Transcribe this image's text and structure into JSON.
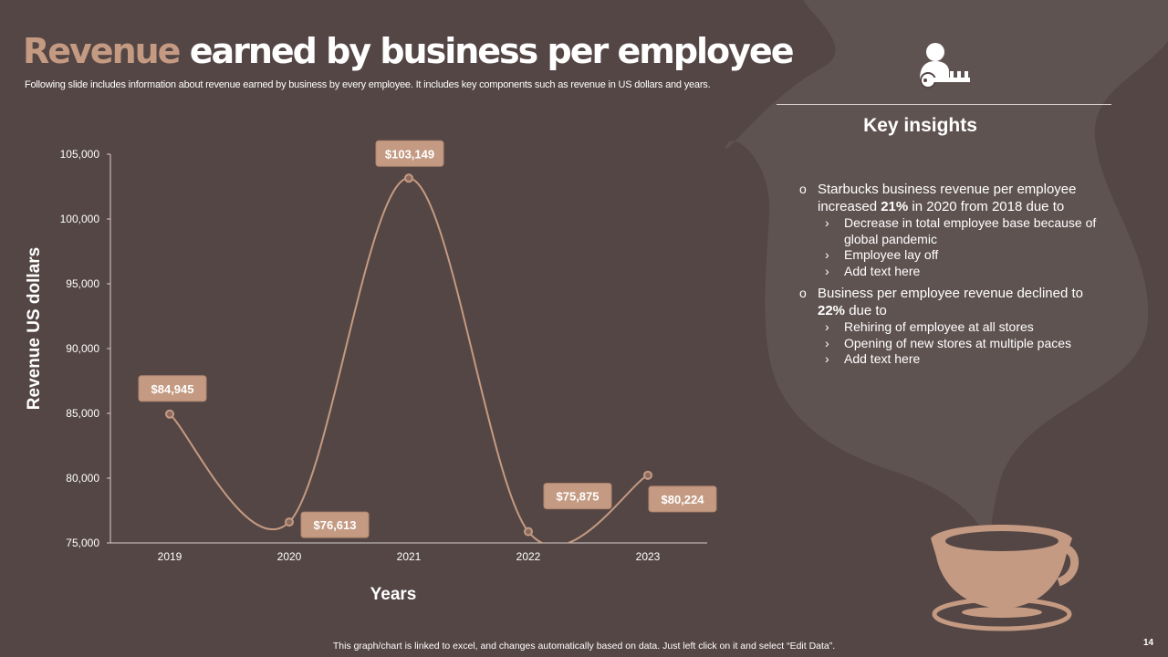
{
  "title": {
    "accent": "Revenue",
    "rest": "earned by business per employee"
  },
  "subtitle": "Following slide includes information about revenue earned by business by every  employee. It includes key components such as revenue in US dollars and years.",
  "colors": {
    "background": "#544645",
    "steam": "#5f5351",
    "accent": "#c49a82",
    "line": "#c49a82",
    "label_box": "#c49a82"
  },
  "chart_data": {
    "type": "line",
    "smooth": true,
    "x": [
      "2019",
      "2020",
      "2021",
      "2022",
      "2023"
    ],
    "series": [
      {
        "values": [
          84945,
          76613,
          103149,
          75875,
          80224
        ]
      }
    ],
    "data_labels": [
      "$84,945",
      "$76,613",
      "$103,149",
      "$75,875",
      "$80,224"
    ],
    "xlabel": "Years",
    "ylabel": "Revenue US dollars",
    "ylim": [
      75000,
      105000
    ],
    "yticks": [
      75000,
      80000,
      85000,
      90000,
      95000,
      100000,
      105000
    ],
    "ytick_labels": [
      "75,000",
      "80,000",
      "85,000",
      "90,000",
      "95,000",
      "100,000",
      "105,000"
    ],
    "grid": false,
    "legend": false
  },
  "panel": {
    "icon": "user-key-icon",
    "heading": "Key insights",
    "insights": [
      {
        "pre": "Starbucks business revenue per employee increased ",
        "bold": "21%",
        "post": " in 2020 from 2018 due to",
        "subpoints": [
          "Decrease in total employee base because of global pandemic",
          "Employee lay off",
          "Add text here"
        ]
      },
      {
        "pre": "Business per employee revenue declined to ",
        "bold": "22%",
        "post": " due to",
        "subpoints": [
          "Rehiring of employee at all stores",
          "Opening of new stores at multiple paces",
          "Add text here"
        ]
      }
    ]
  },
  "bullet_glyph": "o",
  "subpoint_glyph": "›",
  "decoration": {
    "cup_icon": "coffee-cup-icon",
    "steam": "steam-shape"
  },
  "footnote": "This graph/chart is linked to excel,  and changes automatically based on data. Just left click on it and select “Edit Data”.",
  "page_number": "14"
}
